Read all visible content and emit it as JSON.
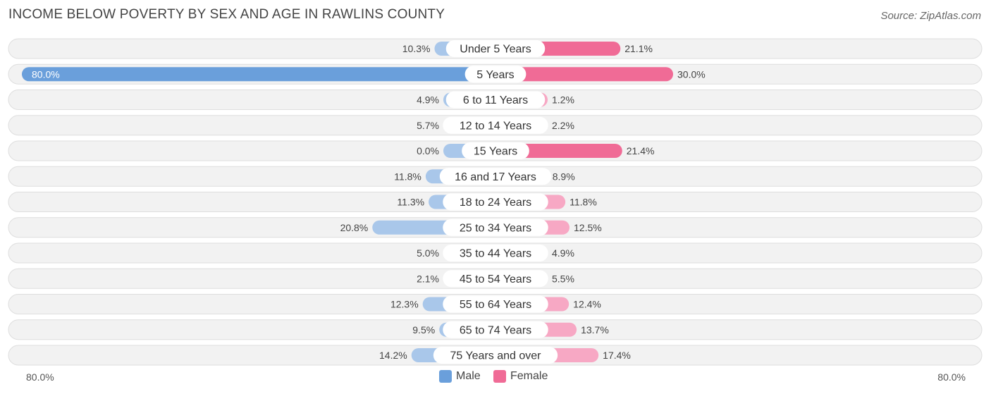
{
  "header": {
    "title": "INCOME BELOW POVERTY BY SEX AND AGE IN RAWLINS COUNTY",
    "source": "Source: ZipAtlas.com"
  },
  "colors": {
    "male": "#a9c7ea",
    "male_strong": "#6a9fdb",
    "female": "#f7a8c4",
    "female_strong": "#f06b96",
    "row_bg": "#f2f2f2",
    "row_border": "#dedede"
  },
  "legend": {
    "male_label": "Male",
    "female_label": "Female"
  },
  "axis": {
    "left_label": "80.0%",
    "right_label": "80.0%"
  },
  "chart_data": {
    "type": "bar",
    "orientation": "horizontal-diverging",
    "title": "INCOME BELOW POVERTY BY SEX AND AGE IN RAWLINS COUNTY",
    "xlim": [
      -80,
      80
    ],
    "categories": [
      "Under 5 Years",
      "5 Years",
      "6 to 11 Years",
      "12 to 14 Years",
      "15 Years",
      "16 and 17 Years",
      "18 to 24 Years",
      "25 to 34 Years",
      "35 to 44 Years",
      "45 to 54 Years",
      "55 to 64 Years",
      "65 to 74 Years",
      "75 Years and over"
    ],
    "series": [
      {
        "name": "Male",
        "values": [
          10.3,
          80.0,
          4.9,
          5.7,
          0.0,
          11.8,
          11.3,
          20.8,
          5.0,
          2.1,
          12.3,
          9.5,
          14.2
        ],
        "labels": [
          "10.3%",
          "80.0%",
          "4.9%",
          "5.7%",
          "0.0%",
          "11.8%",
          "11.3%",
          "20.8%",
          "5.0%",
          "2.1%",
          "12.3%",
          "9.5%",
          "14.2%"
        ]
      },
      {
        "name": "Female",
        "values": [
          21.1,
          30.0,
          1.2,
          2.2,
          21.4,
          8.9,
          11.8,
          12.5,
          4.9,
          5.5,
          12.4,
          13.7,
          17.4
        ],
        "labels": [
          "21.1%",
          "30.0%",
          "1.2%",
          "2.2%",
          "21.4%",
          "8.9%",
          "11.8%",
          "12.5%",
          "4.9%",
          "5.5%",
          "12.4%",
          "13.7%",
          "17.4%"
        ]
      }
    ],
    "legend_position": "bottom-center"
  }
}
